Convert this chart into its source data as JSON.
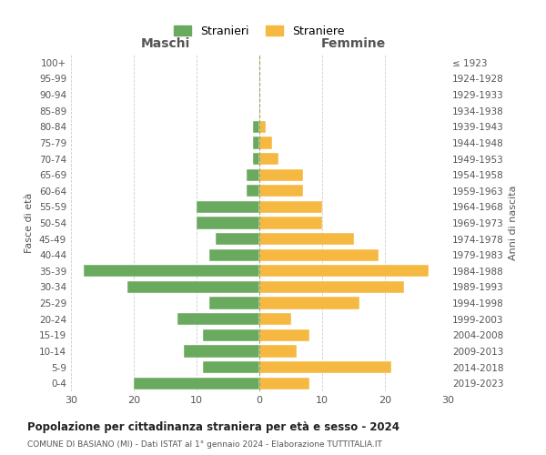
{
  "age_groups": [
    "0-4",
    "5-9",
    "10-14",
    "15-19",
    "20-24",
    "25-29",
    "30-34",
    "35-39",
    "40-44",
    "45-49",
    "50-54",
    "55-59",
    "60-64",
    "65-69",
    "70-74",
    "75-79",
    "80-84",
    "85-89",
    "90-94",
    "95-99",
    "100+"
  ],
  "birth_years": [
    "2019-2023",
    "2014-2018",
    "2009-2013",
    "2004-2008",
    "1999-2003",
    "1994-1998",
    "1989-1993",
    "1984-1988",
    "1979-1983",
    "1974-1978",
    "1969-1973",
    "1964-1968",
    "1959-1963",
    "1954-1958",
    "1949-1953",
    "1944-1948",
    "1939-1943",
    "1934-1938",
    "1929-1933",
    "1924-1928",
    "≤ 1923"
  ],
  "maschi": [
    20,
    9,
    12,
    9,
    13,
    8,
    21,
    28,
    8,
    7,
    10,
    10,
    2,
    2,
    1,
    1,
    1,
    0,
    0,
    0,
    0
  ],
  "femmine": [
    8,
    21,
    6,
    8,
    5,
    16,
    23,
    27,
    19,
    15,
    10,
    10,
    7,
    7,
    3,
    2,
    1,
    0,
    0,
    0,
    0
  ],
  "maschi_color": "#6aaa5e",
  "femmine_color": "#f5b942",
  "background_color": "#ffffff",
  "grid_color": "#cccccc",
  "title": "Popolazione per cittadinanza straniera per età e sesso - 2024",
  "subtitle": "COMUNE DI BASIANO (MI) - Dati ISTAT al 1° gennaio 2024 - Elaborazione TUTTITALIA.IT",
  "xlabel_maschi": "Maschi",
  "xlabel_femmine": "Femmine",
  "ylabel_left": "Fasce di età",
  "ylabel_right": "Anni di nascita",
  "legend_maschi": "Stranieri",
  "legend_femmine": "Straniere",
  "xlim": 30
}
